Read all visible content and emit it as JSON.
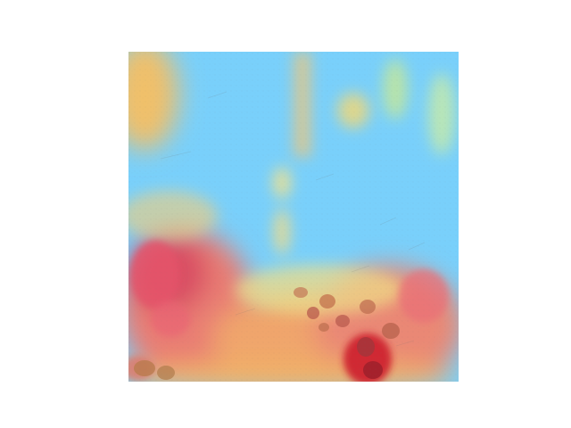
{
  "image": {
    "kind": "heatmap-overlay-photo",
    "colormap": "jet",
    "overlay_opacity": 0.55,
    "palette": {
      "cold": "#6fd1ff",
      "cool": "#8fd8f4",
      "neutral": "#d8f59b",
      "warm": "#f6b85b",
      "hot": "#e85d6f",
      "very_hot": "#c81e2a",
      "texture": "#6f6f6f"
    }
  }
}
